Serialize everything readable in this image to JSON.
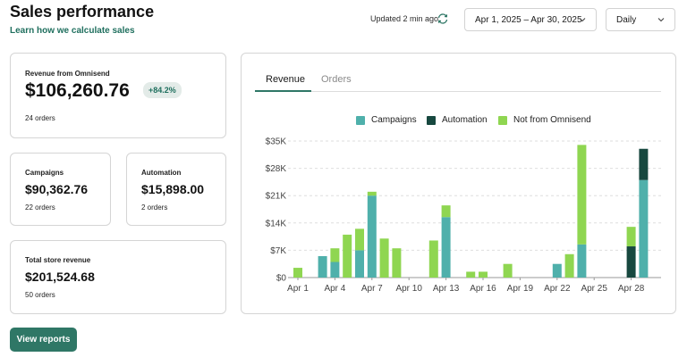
{
  "header": {
    "title": "Sales performance",
    "learn_link": "Learn how we calculate sales",
    "updated": "Updated 2 min ago",
    "date_range": "Apr 1, 2025 – Apr 30, 2025",
    "period": "Daily"
  },
  "cards": {
    "omnisend": {
      "label": "Revenue from Omnisend",
      "value": "$106,260.76",
      "badge": "+84.2%",
      "orders": "24 orders"
    },
    "campaigns": {
      "label": "Campaigns",
      "value": "$90,362.76",
      "orders": "22 orders"
    },
    "automation": {
      "label": "Automation",
      "value": "$15,898.00",
      "orders": "2 orders"
    },
    "total": {
      "label": "Total store revenue",
      "value": "$201,524.68",
      "orders": "50 orders"
    }
  },
  "view_reports": "View reports",
  "tabs": [
    "Revenue",
    "Orders"
  ],
  "colors": {
    "campaigns": "#4fb0ab",
    "automation": "#17483f",
    "not_from_omnisend": "#8fd651",
    "accent": "#2f7766"
  },
  "chart_data": {
    "type": "bar",
    "stacked": true,
    "title": "",
    "xlabel": "",
    "ylabel": "",
    "ylim": [
      0,
      35000
    ],
    "y_ticks": [
      "$0",
      "$7K",
      "$14K",
      "$21K",
      "$28K",
      "$35K"
    ],
    "x_tick_labels": [
      "Apr 1",
      "Apr 4",
      "Apr 7",
      "Apr 10",
      "Apr 13",
      "Apr 16",
      "Apr 19",
      "Apr 22",
      "Apr 25",
      "Apr 28"
    ],
    "grid": true,
    "legend_position": "top",
    "categories": [
      "Apr 1",
      "Apr 2",
      "Apr 3",
      "Apr 4",
      "Apr 5",
      "Apr 6",
      "Apr 7",
      "Apr 8",
      "Apr 9",
      "Apr 10",
      "Apr 11",
      "Apr 12",
      "Apr 13",
      "Apr 14",
      "Apr 15",
      "Apr 16",
      "Apr 17",
      "Apr 18",
      "Apr 19",
      "Apr 20",
      "Apr 21",
      "Apr 22",
      "Apr 23",
      "Apr 24",
      "Apr 25",
      "Apr 26",
      "Apr 27",
      "Apr 28",
      "Apr 29"
    ],
    "series": [
      {
        "name": "Campaigns",
        "values": [
          0,
          0,
          5500,
          4000,
          0,
          7000,
          21000,
          0,
          0,
          0,
          0,
          0,
          15500,
          0,
          0,
          0,
          0,
          0,
          0,
          0,
          0,
          3500,
          0,
          8500,
          0,
          0,
          0,
          0,
          25000
        ]
      },
      {
        "name": "Automation",
        "values": [
          0,
          0,
          0,
          0,
          0,
          0,
          0,
          0,
          0,
          0,
          0,
          0,
          0,
          0,
          0,
          0,
          0,
          0,
          0,
          0,
          0,
          0,
          0,
          0,
          0,
          0,
          0,
          8000,
          8000
        ]
      },
      {
        "name": "Not from Omnisend",
        "values": [
          2500,
          0,
          0,
          3500,
          11000,
          5500,
          1000,
          10000,
          7500,
          0,
          0,
          9500,
          3000,
          0,
          1500,
          1500,
          0,
          3500,
          0,
          0,
          0,
          0,
          6000,
          25500,
          0,
          0,
          0,
          5000,
          0
        ]
      }
    ]
  }
}
